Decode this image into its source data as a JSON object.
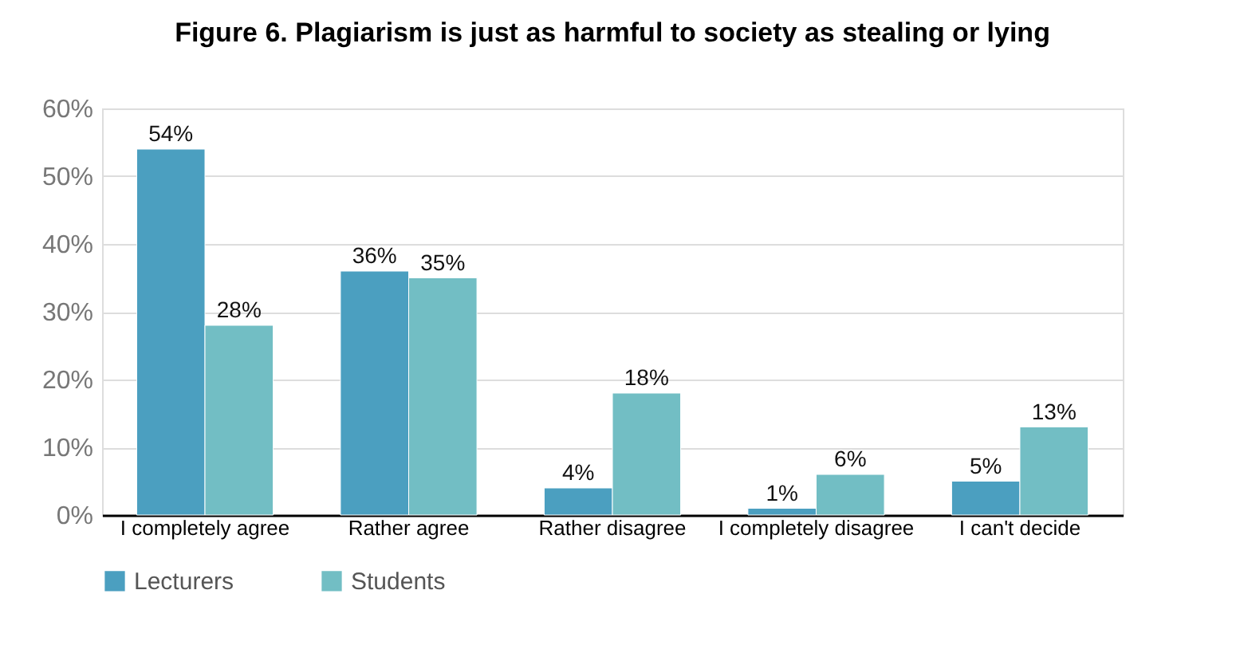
{
  "chart_data": {
    "type": "bar",
    "title": "Figure 6. Plagiarism is just as harmful to society as stealing or lying",
    "categories": [
      "I completely agree",
      "Rather agree",
      "Rather disagree",
      "I completely disagree",
      "I can't decide"
    ],
    "series": [
      {
        "name": "Lecturers",
        "color": "#4b9fc0",
        "values": [
          54,
          36,
          4,
          1,
          5
        ],
        "value_labels": [
          "54%",
          "36%",
          "4%",
          "1%",
          "5%"
        ]
      },
      {
        "name": "Students",
        "color": "#72bec4",
        "values": [
          28,
          35,
          18,
          6,
          13
        ],
        "value_labels": [
          "28%",
          "35%",
          "18%",
          "6%",
          "13%"
        ]
      }
    ],
    "ylim": [
      0,
      60
    ],
    "yticks": [
      {
        "value": 0,
        "label": "0%"
      },
      {
        "value": 10,
        "label": "10%"
      },
      {
        "value": 20,
        "label": "20%"
      },
      {
        "value": 30,
        "label": "30%"
      },
      {
        "value": 40,
        "label": "40%"
      },
      {
        "value": 50,
        "label": "50%"
      },
      {
        "value": 60,
        "label": "60%"
      }
    ],
    "grid": "y",
    "legend": "bottom"
  }
}
